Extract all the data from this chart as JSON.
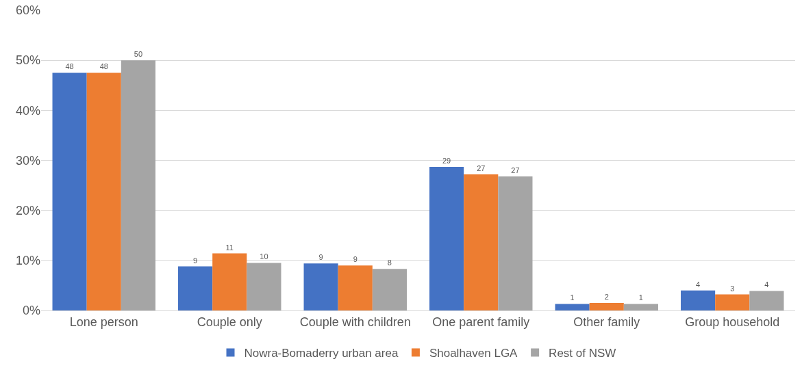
{
  "chart_data": {
    "type": "bar",
    "categories": [
      "Lone person",
      "Couple only",
      "Couple with children",
      "One parent family",
      "Other family",
      "Group household"
    ],
    "series": [
      {
        "name": "Nowra-Bomaderry urban area",
        "color": "#4472c4",
        "values": [
          47.5,
          8.8,
          9.4,
          28.7,
          1.3,
          4.0
        ],
        "value_labels": [
          "48",
          "9",
          "9",
          "29",
          "1",
          "4"
        ]
      },
      {
        "name": "Shoalhaven LGA",
        "color": "#ed7d31",
        "values": [
          47.5,
          11.4,
          9.0,
          27.2,
          1.5,
          3.2
        ],
        "value_labels": [
          "48",
          "11",
          "9",
          "27",
          "2",
          "3"
        ]
      },
      {
        "name": "Rest of NSW",
        "color": "#a5a5a5",
        "values": [
          50.0,
          9.5,
          8.3,
          26.8,
          1.3,
          3.9
        ],
        "value_labels": [
          "50",
          "10",
          "8",
          "27",
          "1",
          "4"
        ]
      }
    ],
    "ylim": [
      0,
      60
    ],
    "yticks": [
      {
        "value": 0,
        "label": "0%"
      },
      {
        "value": 10,
        "label": "10%"
      },
      {
        "value": 20,
        "label": "20%"
      },
      {
        "value": 30,
        "label": "30%"
      },
      {
        "value": 40,
        "label": "40%"
      },
      {
        "value": 50,
        "label": "50%"
      },
      {
        "value": 60,
        "label": "60%"
      }
    ],
    "grid": "y",
    "legend": "bottom"
  }
}
